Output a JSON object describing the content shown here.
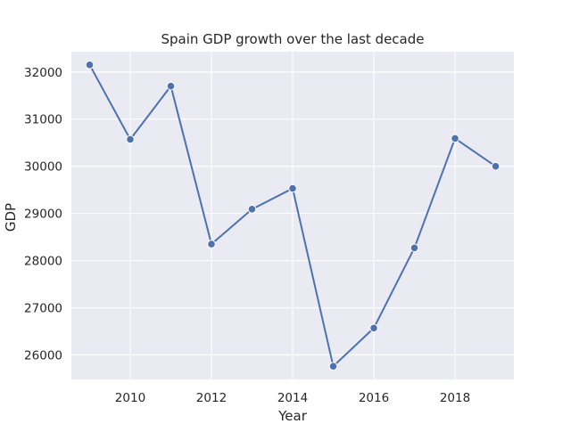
{
  "chart_data": {
    "type": "line",
    "title": "Spain GDP growth over the last decade",
    "xlabel": "Year",
    "ylabel": "GDP",
    "x": [
      2009,
      2010,
      2011,
      2012,
      2013,
      2014,
      2015,
      2016,
      2017,
      2018,
      2019
    ],
    "series": [
      {
        "values": [
          32150,
          30570,
          31700,
          28350,
          29090,
          29530,
          25760,
          26570,
          28270,
          30590,
          30000
        ]
      }
    ],
    "xlim": [
      2008.55,
      2019.45
    ],
    "ylim": [
      25480,
      32430
    ],
    "xticks": [
      2010,
      2012,
      2014,
      2016,
      2018
    ],
    "yticks": [
      26000,
      27000,
      28000,
      29000,
      30000,
      31000,
      32000
    ],
    "grid": true,
    "legend": "none",
    "colors": {
      "background": "#eaeaf2",
      "grid": "#ffffff",
      "line": "#4c72b0",
      "text": "#262626"
    }
  }
}
